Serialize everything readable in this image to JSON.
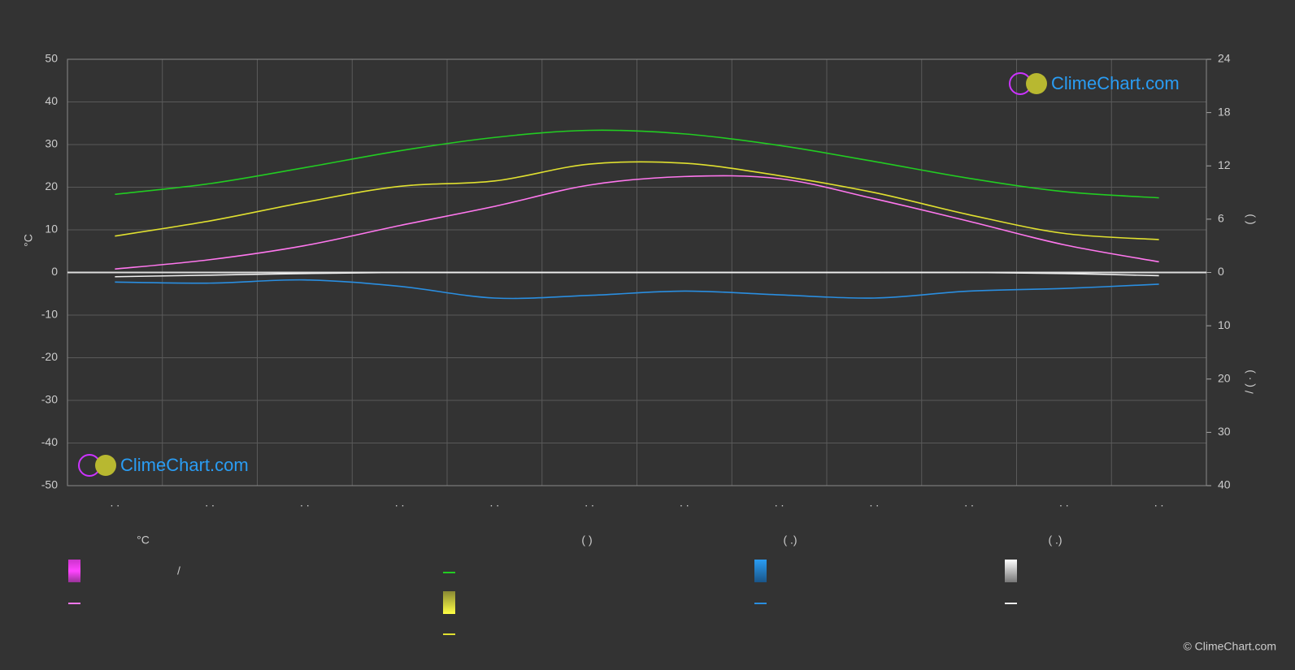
{
  "chart_data": {
    "type": "line",
    "categories": [
      ". .",
      ". .",
      ". .",
      ". .",
      ". .",
      ". .",
      ". .",
      ". .",
      ". .",
      ". .",
      ". .",
      ". ."
    ],
    "ylabel": "°C",
    "ylim": [
      -50,
      50
    ],
    "yticks": [
      -50,
      -40,
      -30,
      -20,
      -10,
      0,
      10,
      20,
      30,
      40,
      50
    ],
    "y2lim": [
      0,
      24
    ],
    "y2ticks": [
      0,
      6,
      12,
      18,
      24
    ],
    "y2label": "(      )",
    "y3lim": [
      0,
      40
    ],
    "y3ticks": [
      10,
      20,
      30,
      40
    ],
    "y3label": "/   ( · )",
    "grid": true,
    "series": [
      {
        "color": "#22cc22",
        "axis": "y2",
        "values": [
          8.8,
          10.0,
          11.8,
          13.7,
          15.2,
          16.0,
          15.6,
          14.3,
          12.5,
          10.6,
          9.1,
          8.4
        ]
      },
      {
        "color": "#e0e030",
        "axis": "y2",
        "values": [
          4.1,
          5.8,
          7.9,
          9.7,
          10.3,
          12.2,
          12.3,
          10.9,
          9.0,
          6.5,
          4.4,
          3.7
        ]
      },
      {
        "color": "#ff77ee",
        "axis": "y",
        "values": [
          0.8,
          3.0,
          6.3,
          11.0,
          15.5,
          20.5,
          22.5,
          22.0,
          17.3,
          12.0,
          6.5,
          2.5
        ]
      },
      {
        "color": "#2a8ee0",
        "axis": "y3",
        "values": [
          1.8,
          2.0,
          1.4,
          2.6,
          4.8,
          4.3,
          3.5,
          4.2,
          4.8,
          3.5,
          3.0,
          2.2
        ]
      },
      {
        "color": "#eeeeee",
        "axis": "y3",
        "values": [
          0.8,
          0.5,
          0.2,
          0,
          0,
          0,
          0,
          0,
          0,
          0,
          0.2,
          0.6
        ]
      }
    ],
    "legend_headers": [
      "°C",
      "(          )",
      "(   .)",
      "(   .)"
    ],
    "legend_separator": "/",
    "watermark": "ClimeChart.com",
    "copyright": "© ClimeChart.com"
  }
}
